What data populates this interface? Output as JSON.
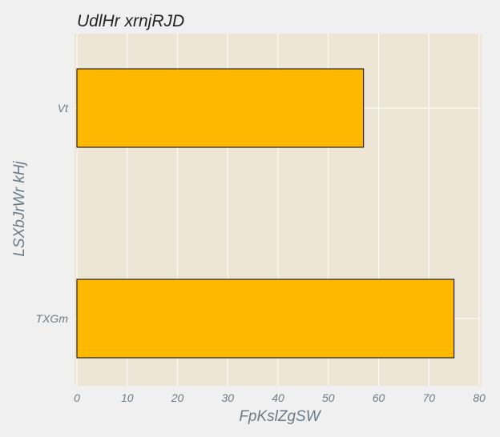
{
  "chart_data": {
    "type": "bar",
    "orientation": "horizontal",
    "title": "UdlHr xrnjRJD",
    "xlabel": "FpKslZgSW",
    "ylabel": "LSXbJrWr kHj",
    "categories": [
      "Vt",
      "TXGm"
    ],
    "values": [
      57,
      75
    ],
    "xlim": [
      0,
      80
    ],
    "xticks": [
      0,
      10,
      20,
      30,
      40,
      50,
      60,
      70,
      80
    ],
    "grid": true,
    "colors": {
      "bar": "#ffb800",
      "bar_edge": "#000000",
      "plot_background": "#ede6d6",
      "figure_background": "#f0f0f0",
      "grid": "#ffffff"
    }
  }
}
